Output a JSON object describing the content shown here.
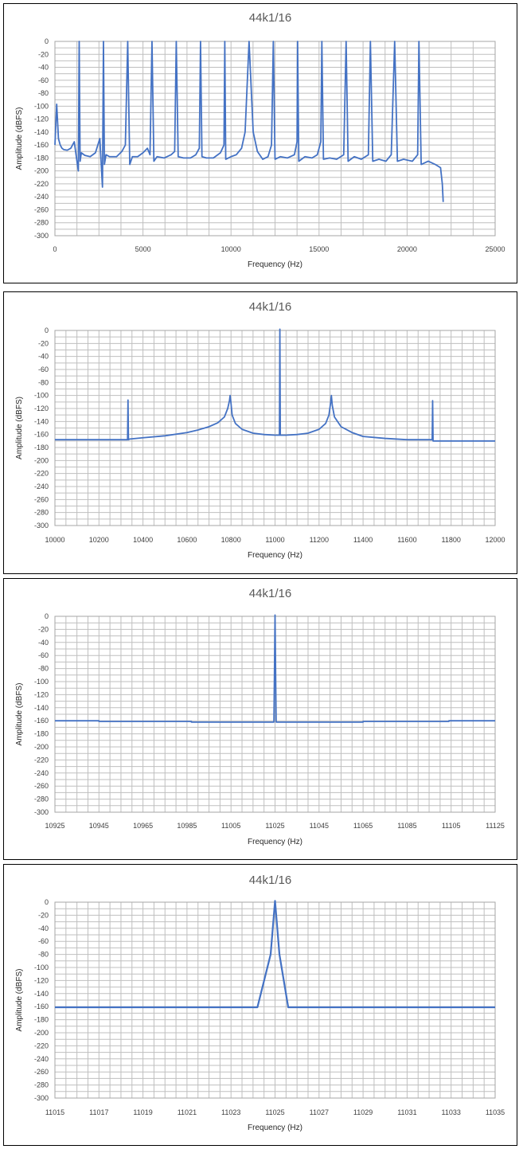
{
  "chart_data": [
    {
      "type": "line",
      "title": "44k1/16",
      "xlabel": "Frequency (Hz)",
      "ylabel": "Amplitude (dBFS)",
      "xlim": [
        0,
        25000
      ],
      "ylim": [
        -300,
        0
      ],
      "x_ticks": [
        0,
        5000,
        10000,
        15000,
        20000,
        25000
      ],
      "y_ticks": [
        0,
        -20,
        -40,
        -60,
        -80,
        -100,
        -120,
        -140,
        -160,
        -180,
        -200,
        -220,
        -240,
        -260,
        -280,
        -300
      ],
      "x_minor_step": 1250,
      "y_minor_step": 10,
      "grid": true,
      "legend": "none",
      "color": "#4472C4",
      "series": [
        {
          "x": [
            0,
            100,
            200,
            300,
            400,
            500,
            700,
            900,
            1100,
            1250,
            1330,
            1378,
            1430,
            1500,
            1700,
            2000,
            2300,
            2550,
            2700,
            2756,
            2810,
            2900,
            3100,
            3500,
            3800,
            4000,
            4134,
            4250,
            4400,
            4700,
            5000,
            5250,
            5400,
            5512,
            5620,
            5800,
            6200,
            6600,
            6800,
            6891,
            7000,
            7300,
            7700,
            8000,
            8200,
            8269,
            8350,
            8600,
            9000,
            9400,
            9600,
            9647,
            9700,
            10000,
            10300,
            10600,
            10800,
            11025,
            11260,
            11500,
            11800,
            12100,
            12300,
            12403,
            12500,
            12800,
            13200,
            13600,
            13750,
            13781,
            13850,
            14200,
            14600,
            14900,
            15100,
            15159,
            15250,
            15600,
            16000,
            16400,
            16537,
            16650,
            17000,
            17400,
            17800,
            17916,
            18050,
            18400,
            18800,
            19100,
            19294,
            19450,
            19800,
            20300,
            20600,
            20672,
            20800,
            21200,
            21600,
            21900,
            22000,
            22050
          ],
          "y": [
            -160,
            -97,
            -150,
            -160,
            -165,
            -167,
            -168,
            -165,
            -155,
            -185,
            -200,
            0,
            -185,
            -172,
            -176,
            -178,
            -172,
            -150,
            -225,
            0,
            -190,
            -175,
            -178,
            -178,
            -170,
            -160,
            0,
            -190,
            -178,
            -178,
            -172,
            -165,
            -175,
            0,
            -185,
            -178,
            -180,
            -175,
            -170,
            0,
            -178,
            -180,
            -180,
            -175,
            -165,
            0,
            -178,
            -180,
            -180,
            -172,
            -160,
            0,
            -182,
            -178,
            -175,
            -165,
            -140,
            0,
            -140,
            -170,
            -182,
            -178,
            -160,
            0,
            -182,
            -178,
            -180,
            -175,
            -155,
            0,
            -185,
            -178,
            -180,
            -175,
            -155,
            0,
            -182,
            -180,
            -182,
            -175,
            0,
            -185,
            -178,
            -182,
            -175,
            0,
            -185,
            -182,
            -185,
            -175,
            0,
            -185,
            -182,
            -185,
            -175,
            0,
            -190,
            -185,
            -190,
            -195,
            -220,
            -248
          ]
        }
      ]
    },
    {
      "type": "line",
      "title": "44k1/16",
      "xlabel": "Frequency (Hz)",
      "ylabel": "Amplitude (dBFS)",
      "xlim": [
        10000,
        12000
      ],
      "ylim": [
        -300,
        0
      ],
      "x_ticks": [
        10000,
        10200,
        10400,
        10600,
        10800,
        11000,
        11200,
        11400,
        11600,
        11800,
        12000
      ],
      "y_ticks": [
        0,
        -20,
        -40,
        -60,
        -80,
        -100,
        -120,
        -140,
        -160,
        -180,
        -200,
        -220,
        -240,
        -260,
        -280,
        -300
      ],
      "x_minor_step": 50,
      "y_minor_step": 10,
      "grid": true,
      "legend": "none",
      "color": "#4472C4",
      "series": [
        {
          "x": [
            10000,
            10100,
            10200,
            10300,
            10330,
            10332,
            10334,
            10340,
            10400,
            10500,
            10600,
            10650,
            10700,
            10740,
            10770,
            10785,
            10793,
            10796,
            10800,
            10805,
            10820,
            10850,
            10900,
            10950,
            11000,
            11020,
            11022,
            11024,
            11026,
            11028,
            11050,
            11100,
            11150,
            11200,
            11230,
            11245,
            11253,
            11256,
            11260,
            11270,
            11300,
            11350,
            11400,
            11500,
            11600,
            11700,
            11714,
            11716,
            11718,
            11725,
            11800,
            11900,
            12000
          ],
          "y": [
            -168,
            -168,
            -168,
            -168,
            -168,
            -107,
            -168,
            -167,
            -165,
            -162,
            -157,
            -153,
            -148,
            -142,
            -133,
            -120,
            -108,
            -100,
            -112,
            -130,
            -143,
            -152,
            -158,
            -160,
            -161,
            -161,
            2,
            -161,
            -161,
            -161,
            -161,
            -160,
            -158,
            -152,
            -143,
            -130,
            -110,
            -100,
            -115,
            -133,
            -148,
            -157,
            -163,
            -166,
            -168,
            -168,
            -168,
            -108,
            -170,
            -170,
            -170,
            -170,
            -170
          ]
        }
      ]
    },
    {
      "type": "line",
      "title": "44k1/16",
      "xlabel": "Frequency (Hz)",
      "ylabel": "Amplitude (dBFS)",
      "xlim": [
        10925,
        11125
      ],
      "ylim": [
        -300,
        0
      ],
      "x_ticks": [
        10925,
        10945,
        10965,
        10985,
        11005,
        11025,
        11045,
        11065,
        11085,
        11105,
        11125
      ],
      "y_ticks": [
        0,
        -20,
        -40,
        -60,
        -80,
        -100,
        -120,
        -140,
        -160,
        -180,
        -200,
        -220,
        -240,
        -260,
        -280,
        -300
      ],
      "x_minor_step": 5,
      "y_minor_step": 10,
      "grid": true,
      "legend": "none",
      "color": "#4472C4",
      "series": [
        {
          "x": [
            10925,
            10945,
            10945,
            10987,
            10987,
            11024.5,
            11025,
            11025.5,
            11065,
            11065,
            11104,
            11104,
            11125
          ],
          "y": [
            -160,
            -160,
            -161,
            -161,
            -162,
            -162,
            2,
            -162,
            -162,
            -161,
            -161,
            -160,
            -160
          ]
        }
      ]
    },
    {
      "type": "line",
      "title": "44k1/16",
      "xlabel": "Frequency (Hz)",
      "ylabel": "Amplitude (dBFS)",
      "xlim": [
        11015,
        11035
      ],
      "ylim": [
        -300,
        0
      ],
      "x_ticks": [
        11015,
        11017,
        11019,
        11021,
        11023,
        11025,
        11027,
        11029,
        11031,
        11033,
        11035
      ],
      "y_ticks": [
        0,
        -20,
        -40,
        -60,
        -80,
        -100,
        -120,
        -140,
        -160,
        -180,
        -200,
        -220,
        -240,
        -260,
        -280,
        -300
      ],
      "x_minor_step": 0.5,
      "y_minor_step": 10,
      "grid": true,
      "legend": "none",
      "color": "#4472C4",
      "series": [
        {
          "x": [
            11015,
            11024.2,
            11024.8,
            11025,
            11025.2,
            11025.6,
            11035
          ],
          "y": [
            -161,
            -161,
            -80,
            2,
            -80,
            -161,
            -161
          ]
        }
      ]
    }
  ]
}
